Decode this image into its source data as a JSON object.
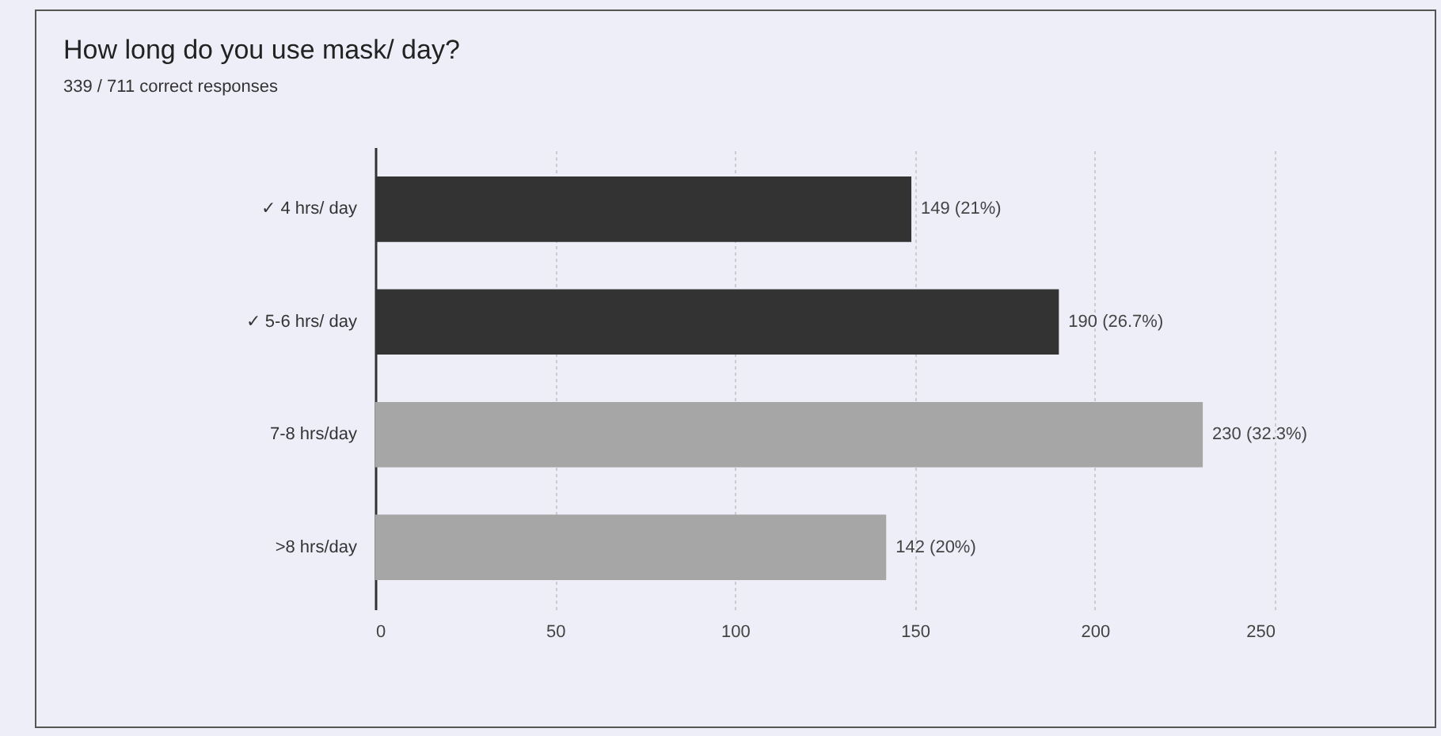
{
  "chart_data": {
    "type": "bar",
    "orientation": "horizontal",
    "title": "How long do you use mask/ day?",
    "subtitle": "339 / 711 correct responses",
    "categories": [
      "✓ 4 hrs/ day",
      "✓ 5-6 hrs/ day",
      "7-8 hrs/day",
      ">8 hrs/day"
    ],
    "values": [
      149,
      190,
      230,
      142
    ],
    "colors": [
      "#333333",
      "#333333",
      "#a6a6a6",
      "#a6a6a6"
    ],
    "value_labels": [
      "149 (21%)",
      "190 (26.7%)",
      "230 (32.3%)",
      "142 (20%)"
    ],
    "xlim": [
      0,
      250
    ],
    "xticks": [
      0,
      50,
      100,
      150,
      200,
      250
    ],
    "grid": "x"
  }
}
